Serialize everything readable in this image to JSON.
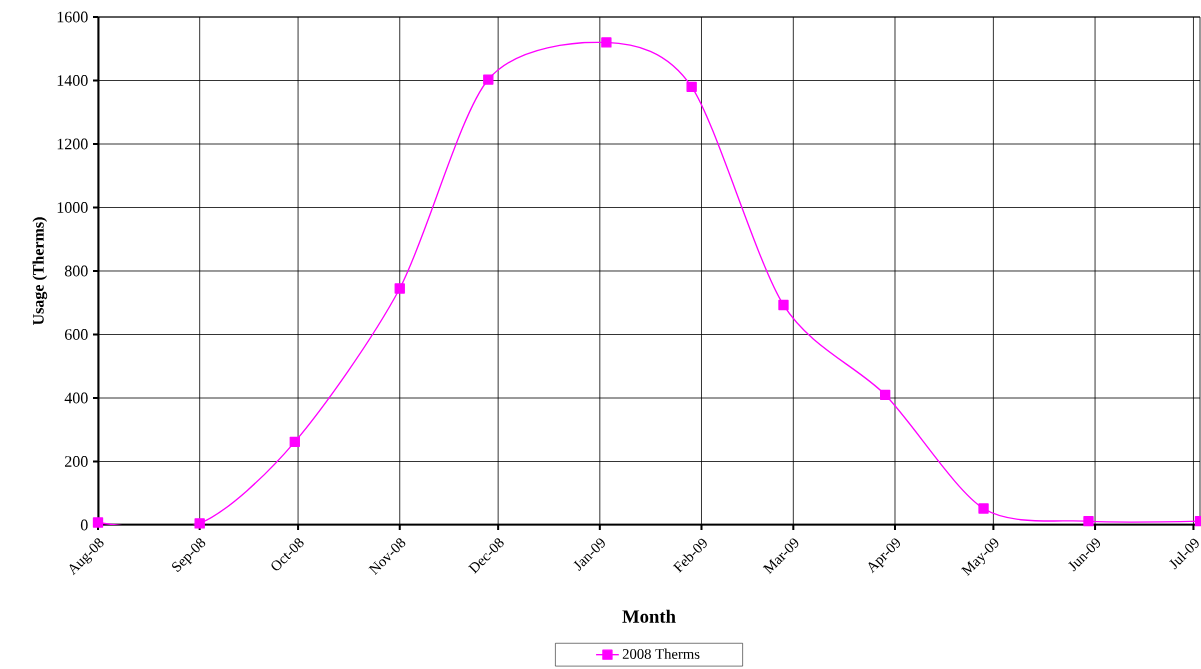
{
  "chart_data": {
    "type": "line",
    "xlabel": "Month",
    "ylabel": "Usage  (Therms)",
    "x": [
      "2008-08-01",
      "2008-09-01",
      "2008-09-30",
      "2008-11-01",
      "2008-11-28",
      "2009-01-03",
      "2009-01-29",
      "2009-02-26",
      "2009-03-29",
      "2009-04-28",
      "2009-05-30",
      "2009-07-03"
    ],
    "series": [
      {
        "name": "2008 Therms",
        "color": "#ff00ff",
        "values": [
          8,
          5,
          262,
          745,
          1403,
          1520,
          1380,
          693,
          410,
          52,
          12,
          12
        ]
      }
    ],
    "xlim": [
      "2008-08-01",
      "2009-07-03"
    ],
    "xticks": [
      {
        "value": "2008-08-01",
        "label": "Aug-08"
      },
      {
        "value": "2008-09-01",
        "label": "Sep-08"
      },
      {
        "value": "2008-10-01",
        "label": "Oct-08"
      },
      {
        "value": "2008-11-01",
        "label": "Nov-08"
      },
      {
        "value": "2008-12-01",
        "label": "Dec-08"
      },
      {
        "value": "2009-01-01",
        "label": "Jan-09"
      },
      {
        "value": "2009-02-01",
        "label": "Feb-09"
      },
      {
        "value": "2009-03-01",
        "label": "Mar-09"
      },
      {
        "value": "2009-04-01",
        "label": "Apr-09"
      },
      {
        "value": "2009-05-01",
        "label": "May-09"
      },
      {
        "value": "2009-06-01",
        "label": "Jun-09"
      },
      {
        "value": "2009-07-01",
        "label": "Jul-09"
      }
    ],
    "ylim": [
      0,
      1600
    ],
    "yticks": [
      0,
      200,
      400,
      600,
      800,
      1000,
      1200,
      1400,
      1600
    ],
    "grid": true,
    "legend": "bottom",
    "marker": "square",
    "line_style": "solid"
  }
}
